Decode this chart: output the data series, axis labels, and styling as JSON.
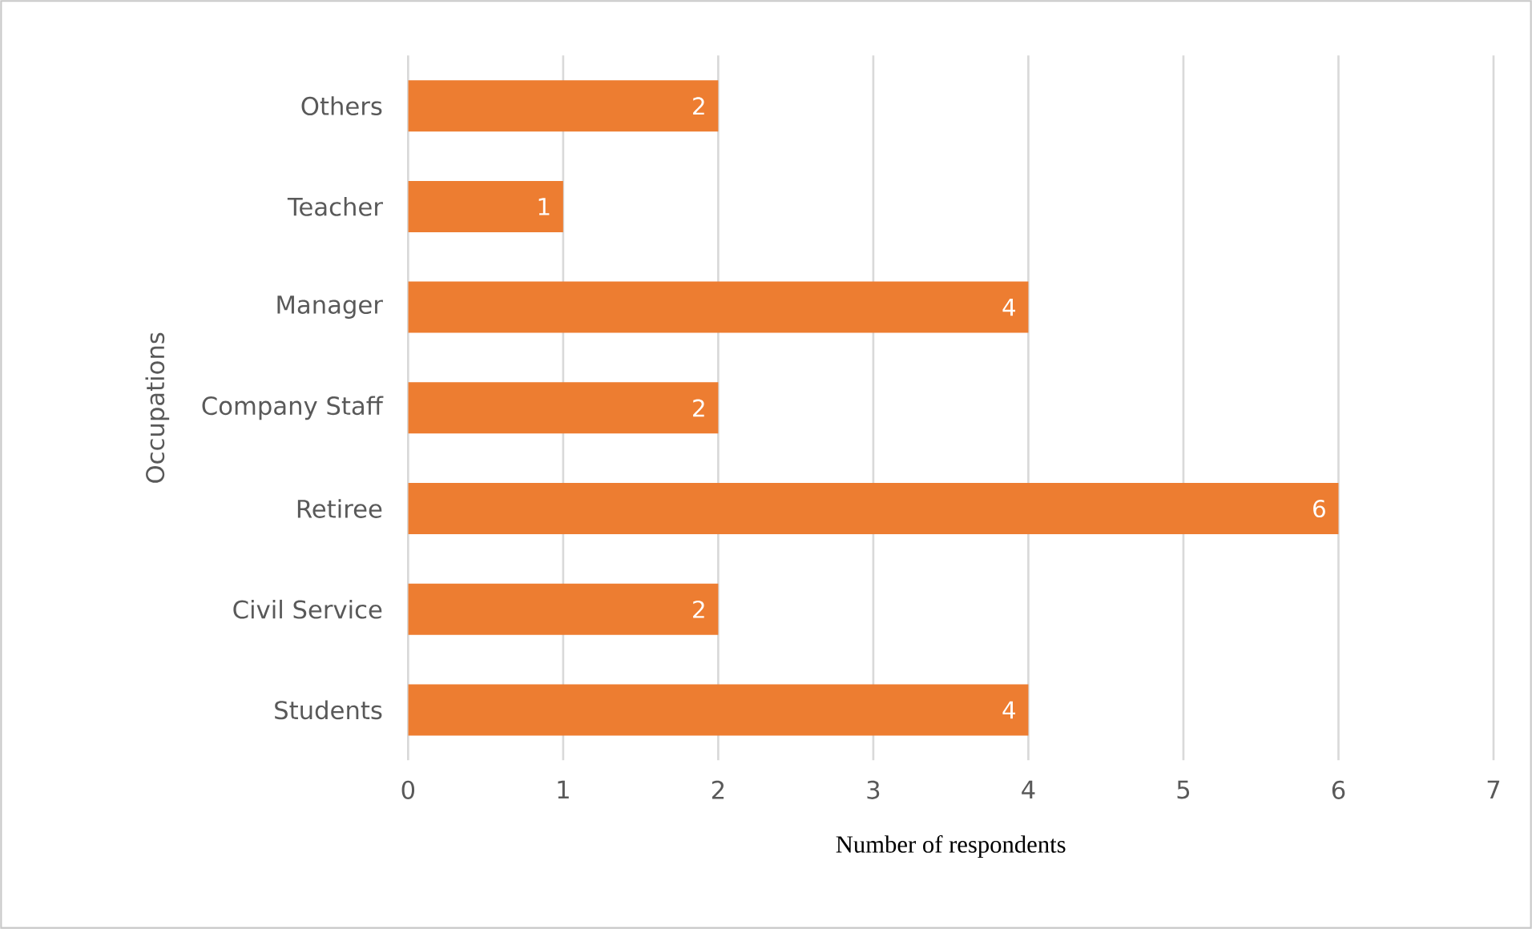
{
  "chart_data": {
    "type": "bar",
    "orientation": "horizontal",
    "xlabel": "Number of respondents",
    "ylabel": "Occupations",
    "categories": [
      "Others",
      "Teacher",
      "Manager",
      "Company Staff",
      "Retiree",
      "Civil Service",
      "Students"
    ],
    "values": [
      2,
      1,
      4,
      2,
      6,
      2,
      4
    ],
    "color": "#ed7d31",
    "xlim": [
      0,
      7
    ],
    "xticks": [
      0,
      1,
      2,
      3,
      4,
      5,
      6,
      7
    ],
    "grid": "x",
    "data_labels": true
  }
}
